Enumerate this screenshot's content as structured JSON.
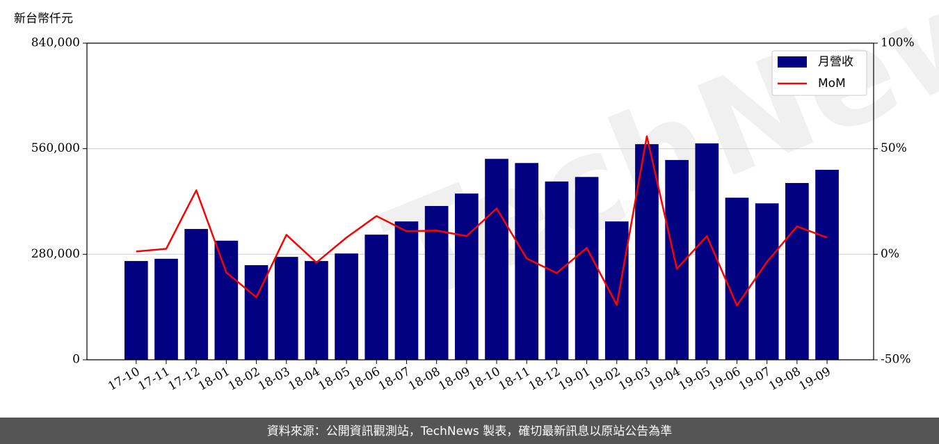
{
  "chart_data": {
    "type": "bar",
    "y_label": "新台幣仟元",
    "watermark": "TechNews",
    "categories": [
      "17-10",
      "17-11",
      "17-12",
      "18-01",
      "18-02",
      "18-03",
      "18-04",
      "18-05",
      "18-06",
      "18-07",
      "18-08",
      "18-09",
      "18-10",
      "18-11",
      "18-12",
      "19-01",
      "19-02",
      "19-03",
      "19-04",
      "19-05",
      "19-06",
      "19-07",
      "19-08",
      "19-09"
    ],
    "series": [
      {
        "name": "月營收",
        "type": "bar",
        "color": "#000080",
        "values": [
          262000,
          268000,
          347000,
          316000,
          251000,
          273000,
          262000,
          282000,
          332000,
          367000,
          408000,
          441000,
          533000,
          522000,
          473000,
          485000,
          367000,
          572000,
          530000,
          574000,
          430000,
          415000,
          469000,
          504000
        ]
      },
      {
        "name": "MoM",
        "type": "line",
        "color": "#ff0000",
        "axis": "y2",
        "values": [
          1.3,
          2.6,
          30.3,
          -8.6,
          -20.4,
          9.2,
          -3.9,
          7.9,
          18.1,
          10.9,
          11.2,
          8.6,
          21.7,
          -2.0,
          -8.9,
          3.0,
          -24.0,
          55.9,
          -6.9,
          8.6,
          -24.3,
          -3.6,
          13.2,
          7.9
        ]
      }
    ],
    "ylim": [
      0,
      840000
    ],
    "yticks": [
      0,
      {
        "value": 280000,
        "label": "280,000"
      },
      {
        "value": 560000,
        "label": "560,000"
      },
      {
        "value": 840000,
        "label": "840,000"
      }
    ],
    "y2lim": [
      -50,
      100
    ],
    "y2ticks": [
      {
        "value": -50,
        "label": "-50%"
      },
      {
        "value": 0,
        "label": "0%"
      },
      {
        "value": 50,
        "label": "50%"
      },
      {
        "value": 100,
        "label": "100%"
      }
    ],
    "grid": true,
    "legend": "upper right"
  },
  "footer": "資料來源：公開資訊觀測站，TechNews 製表，確切最新訊息以原站公告為準"
}
